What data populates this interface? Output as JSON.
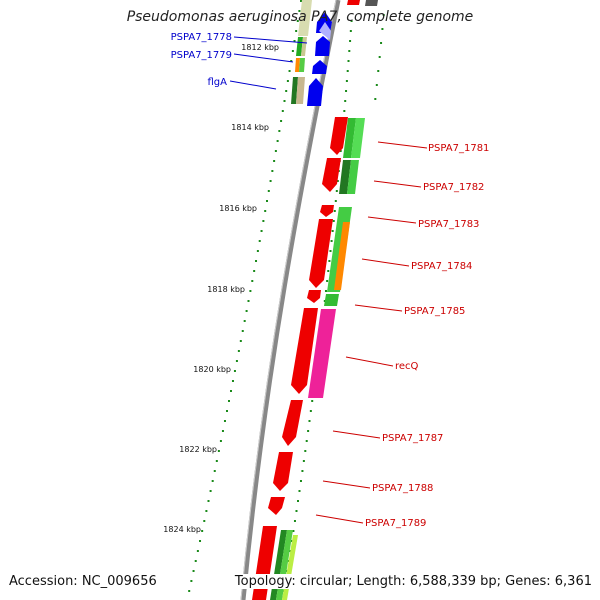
{
  "title": "Pseudomonas aeruginosa PA7, complete genome",
  "footer": {
    "accession": "Accession: NC_009656",
    "summary": "Topology: circular; Length: 6,588,339 bp; Genes: 6,361"
  },
  "ticks": [
    "1812 kbp",
    "1814 kbp",
    "1816 kbp",
    "1818 kbp",
    "1820 kbp",
    "1822 kbp",
    "1824 kbp"
  ],
  "colors": {
    "left_labels": "#0000cc",
    "right_labels": "#cc0000",
    "backbone": "#888888",
    "dots": "#1a8a1a"
  },
  "left_labels": [
    "PSPA7_1778",
    "PSPA7_1779",
    "flgA"
  ],
  "right_labels": [
    "PSPA7_1781",
    "PSPA7_1782",
    "PSPA7_1783",
    "PSPA7_1784",
    "PSPA7_1785",
    "recQ",
    "PSPA7_1787",
    "PSPA7_1788",
    "PSPA7_1789"
  ]
}
